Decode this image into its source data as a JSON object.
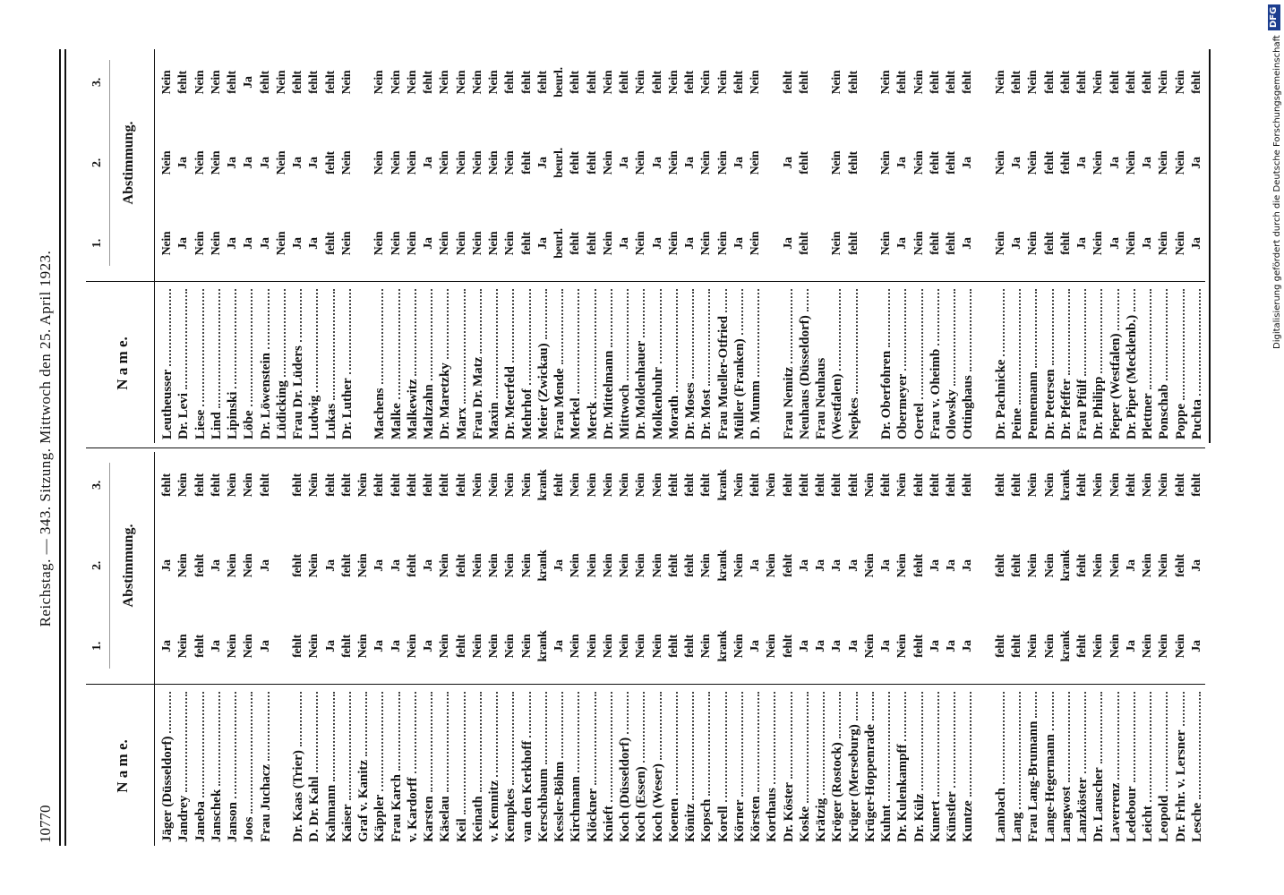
{
  "page_number": "10770",
  "running_head": "Reichstag. — 343. Sitzung. Mittwoch den 25. April 1923.",
  "credit": {
    "text": "Digitalisierung gefördert durch die Deutsche Forschungsgemeinschaft",
    "logo": "DFG"
  },
  "tables": [
    {
      "header": {
        "name": "N a m e.",
        "numbers": [
          "1.",
          "2.",
          "3."
        ],
        "title": "Abstimmung."
      },
      "groups": [
        [
          [
            "Jäger (Düsseldorf)",
            "Ja",
            "Ja",
            "fehlt"
          ],
          [
            "Jandrey",
            "Nein",
            "Nein",
            "Nein"
          ],
          [
            "Janeba",
            "fehlt",
            "fehlt",
            "fehlt"
          ],
          [
            "Janschek",
            "Ja",
            "Ja",
            "fehlt"
          ],
          [
            "Janson",
            "Nein",
            "Nein",
            "Nein"
          ],
          [
            "Joos",
            "Nein",
            "Nein",
            "Nein"
          ],
          [
            "Frau Juchacz",
            "Ja",
            "Ja",
            "fehlt"
          ]
        ],
        [
          [
            "Dr. Kaas (Trier)",
            "fehlt",
            "fehlt",
            "fehlt"
          ],
          [
            "D. Dr. Kahl",
            "Nein",
            "Nein",
            "Nein"
          ],
          [
            "Kahmann",
            "Ja",
            "Ja",
            "fehlt"
          ],
          [
            "Kaiser",
            "fehlt",
            "fehlt",
            "fehlt"
          ],
          [
            "Graf v. Kanitz",
            "Nein",
            "Nein",
            "Nein"
          ],
          [
            "Käppler",
            "Ja",
            "Ja",
            "fehlt"
          ],
          [
            "Frau Karch",
            "Ja",
            "Ja",
            "fehlt"
          ],
          [
            "v. Kardorff",
            "Nein",
            "fehlt",
            "fehlt"
          ],
          [
            "Karsten",
            "Ja",
            "Ja",
            "fehlt"
          ],
          [
            "Käselau",
            "Nein",
            "Nein",
            "fehlt"
          ],
          [
            "Keil",
            "fehlt",
            "fehlt",
            "fehlt"
          ],
          [
            "Keinath",
            "Nein",
            "Nein",
            "Nein"
          ],
          [
            "v. Kemnitz",
            "Nein",
            "Nein",
            "Nein"
          ],
          [
            "Kempkes",
            "Nein",
            "Nein",
            "Nein"
          ],
          [
            "van den Kerkhoff",
            "Nein",
            "Nein",
            "Nein"
          ],
          [
            "Kerschbaum",
            "krank",
            "krank",
            "krank"
          ],
          [
            "Kessler-Böhm",
            "Ja",
            "Ja",
            "fehlt"
          ],
          [
            "Kirchmann",
            "Nein",
            "Nein",
            "Nein"
          ],
          [
            "Klöckner",
            "Nein",
            "Nein",
            "Nein"
          ],
          [
            "Knieft",
            "Nein",
            "Nein",
            "Nein"
          ],
          [
            "Koch (Düsseldorf)",
            "Nein",
            "Nein",
            "Nein"
          ],
          [
            "Koch (Essen)",
            "Nein",
            "Nein",
            "Nein"
          ],
          [
            "Koch (Weser)",
            "Nein",
            "Nein",
            "Nein"
          ],
          [
            "Koenen",
            "fehlt",
            "fehlt",
            "fehlt"
          ],
          [
            "Könitz",
            "fehlt",
            "fehlt",
            "fehlt"
          ],
          [
            "Kopsch",
            "Nein",
            "Nein",
            "fehlt"
          ],
          [
            "Korell",
            "krank",
            "krank",
            "krank"
          ],
          [
            "Körner",
            "Nein",
            "Nein",
            "Nein"
          ],
          [
            "Körsten",
            "Ja",
            "Ja",
            "fehlt"
          ],
          [
            "Korthaus",
            "Nein",
            "Nein",
            "Nein"
          ],
          [
            "Dr. Köster",
            "fehlt",
            "fehlt",
            "fehlt"
          ],
          [
            "Koske",
            "Ja",
            "Ja",
            "fehlt"
          ],
          [
            "Krätzig",
            "Ja",
            "Ja",
            "fehlt"
          ],
          [
            "Kröger (Rostock)",
            "Ja",
            "Ja",
            "fehlt"
          ],
          [
            "Krüger (Merseburg)",
            "Ja",
            "Ja",
            "fehlt"
          ],
          [
            "Krüger-Hoppenrade",
            "Nein",
            "Nein",
            "Nein"
          ],
          [
            "Kuhnt",
            "Ja",
            "Ja",
            "fehlt"
          ],
          [
            "Dr. Kulenkampff",
            "Nein",
            "Nein",
            "Nein"
          ],
          [
            "Dr. Külz",
            "fehlt",
            "fehlt",
            "fehlt"
          ],
          [
            "Kunert",
            "Ja",
            "Ja",
            "fehlt"
          ],
          [
            "Künstler",
            "Ja",
            "Ja",
            "fehlt"
          ],
          [
            "Kuntze",
            "Ja",
            "Ja",
            "fehlt"
          ]
        ],
        [
          [
            "Lambach",
            "fehlt",
            "fehlt",
            "fehlt"
          ],
          [
            "Lang",
            "fehlt",
            "fehlt",
            "fehlt"
          ],
          [
            "Frau Lang-Brumann",
            "Nein",
            "Nein",
            "Nein"
          ],
          [
            "Lange-Hegermann",
            "Nein",
            "Nein",
            "Nein"
          ],
          [
            "Langwost",
            "krank",
            "krank",
            "krank"
          ],
          [
            "Lanzköster",
            "fehlt",
            "fehlt",
            "fehlt"
          ],
          [
            "Dr. Lauscher",
            "Nein",
            "Nein",
            "Nein"
          ],
          [
            "Laverrenz",
            "Nein",
            "Nein",
            "Nein"
          ],
          [
            "Ledebour",
            "Ja",
            "Ja",
            "fehlt"
          ],
          [
            "Leicht",
            "Nein",
            "Nein",
            "Nein"
          ],
          [
            "Leopold",
            "Nein",
            "Nein",
            "Nein"
          ],
          [
            "Dr. Frhr. v. Lersner",
            "Nein",
            "fehlt",
            "fehlt"
          ],
          [
            "Lesche",
            "Ja",
            "Ja",
            "fehlt"
          ]
        ]
      ]
    },
    {
      "header": {
        "name": "N a m e.",
        "numbers": [
          "1.",
          "2.",
          "3."
        ],
        "title": "Abstimmung."
      },
      "groups": [
        [
          [
            "Leutheusser",
            "Nein",
            "Nein",
            "Nein"
          ],
          [
            "Dr. Levi",
            "Ja",
            "Ja",
            "fehlt"
          ],
          [
            "Liese",
            "Nein",
            "Nein",
            "Nein"
          ],
          [
            "Lind",
            "Nein",
            "Nein",
            "Nein"
          ],
          [
            "Lipinski",
            "Ja",
            "Ja",
            "fehlt"
          ],
          [
            "Löbe",
            "Ja",
            "Ja",
            "Ja"
          ],
          [
            "Dr. Löwenstein",
            "Ja",
            "Ja",
            "fehlt"
          ],
          [
            "Lüdicking",
            "Nein",
            "Nein",
            "Nein"
          ],
          [
            "Frau Dr. Lüders",
            "Ja",
            "Ja",
            "fehlt"
          ],
          [
            "Ludwig",
            "Ja",
            "Ja",
            "fehlt"
          ],
          [
            "Lukas",
            "fehlt",
            "fehlt",
            "fehlt"
          ],
          [
            "Dr. Luther",
            "Nein",
            "Nein",
            "Nein"
          ]
        ],
        [
          [
            "Machens",
            "Nein",
            "Nein",
            "Nein"
          ],
          [
            "Malke",
            "Nein",
            "Nein",
            "Nein"
          ],
          [
            "Malkewitz",
            "Nein",
            "Nein",
            "Nein"
          ],
          [
            "Maltzahn",
            "Ja",
            "Ja",
            "fehlt"
          ],
          [
            "Dr. Maretzky",
            "Nein",
            "Nein",
            "Nein"
          ],
          [
            "Marx",
            "Nein",
            "Nein",
            "Nein"
          ],
          [
            "Frau Dr. Matz",
            "Nein",
            "Nein",
            "Nein"
          ],
          [
            "Maxin",
            "Nein",
            "Nein",
            "Nein"
          ],
          [
            "Dr. Meerfeld",
            "Nein",
            "Nein",
            "fehlt"
          ],
          [
            "Mehrhof",
            "fehlt",
            "fehlt",
            "fehlt"
          ],
          [
            "Meier (Zwickau)",
            "Ja",
            "Ja",
            "fehlt"
          ],
          [
            "Frau Mende",
            "beurl.",
            "beurl.",
            "beurl."
          ],
          [
            "Merkel",
            "fehlt",
            "fehlt",
            "fehlt"
          ],
          [
            "Merck",
            "fehlt",
            "fehlt",
            "fehlt"
          ],
          [
            "Dr. Mittelmann",
            "Nein",
            "Nein",
            "Nein"
          ],
          [
            "Mittwoch",
            "Ja",
            "Ja",
            "fehlt"
          ],
          [
            "Dr. Moldenhauer",
            "Nein",
            "Nein",
            "Nein"
          ],
          [
            "Molkenbuhr",
            "Ja",
            "Ja",
            "fehlt"
          ],
          [
            "Morath",
            "Nein",
            "Nein",
            "Nein"
          ],
          [
            "Dr. Moses",
            "Ja",
            "Ja",
            "fehlt"
          ],
          [
            "Dr. Most",
            "Nein",
            "Nein",
            "Nein"
          ],
          [
            "Frau Mueller-Otfried",
            "Nein",
            "Nein",
            "Nein"
          ],
          [
            "Müller (Franken)",
            "Ja",
            "Ja",
            "fehlt"
          ],
          [
            "D. Mumm",
            "Nein",
            "Nein",
            "Nein"
          ]
        ],
        [
          [
            "Frau Nemitz",
            "Ja",
            "Ja",
            "fehlt"
          ],
          [
            "Neuhaus (Düsseldorf)",
            "fehlt",
            "fehlt",
            "fehlt"
          ],
          [
            [
              "Frau Neuhaus",
              "(Westfalen)"
            ],
            "Nein",
            "Nein",
            "Nein"
          ],
          [
            "Nepkes",
            "fehlt",
            "fehlt",
            "fehlt"
          ]
        ],
        [
          [
            "Dr. Oberfohren",
            "Nein",
            "Nein",
            "Nein"
          ],
          [
            "Obermeyer",
            "Ja",
            "Ja",
            "fehlt"
          ],
          [
            "Oertel",
            "Nein",
            "Nein",
            "Nein"
          ],
          [
            "Frau v. Oheimb",
            "fehlt",
            "fehlt",
            "fehlt"
          ],
          [
            "Olowsky",
            "fehlt",
            "fehlt",
            "fehlt"
          ],
          [
            "Ottinghaus",
            "Ja",
            "Ja",
            "fehlt"
          ]
        ],
        [
          [
            "Dr. Pachnicke",
            "Nein",
            "Nein",
            "Nein"
          ],
          [
            "Peine",
            "Ja",
            "Ja",
            "fehlt"
          ],
          [
            "Pennemann",
            "Nein",
            "Nein",
            "Nein"
          ],
          [
            "Dr. Petersen",
            "fehlt",
            "fehlt",
            "fehlt"
          ],
          [
            "Dr. Pfeffer",
            "fehlt",
            "fehlt",
            "fehlt"
          ],
          [
            "Frau Pfülf",
            "Ja",
            "Ja",
            "fehlt"
          ],
          [
            "Dr. Philipp",
            "Nein",
            "Nein",
            "Nein"
          ],
          [
            "Pieper (Westfalen)",
            "Ja",
            "Ja",
            "fehlt"
          ],
          [
            "Dr. Piper (Mecklenb.)",
            "Nein",
            "Nein",
            "fehlt"
          ],
          [
            "Plettner",
            "Ja",
            "Ja",
            "fehlt"
          ],
          [
            "Ponschab",
            "Nein",
            "Nein",
            "Nein"
          ],
          [
            "Poppe",
            "Nein",
            "Nein",
            "Nein"
          ],
          [
            "Puchta",
            "Ja",
            "Ja",
            "fehlt"
          ]
        ]
      ]
    }
  ]
}
